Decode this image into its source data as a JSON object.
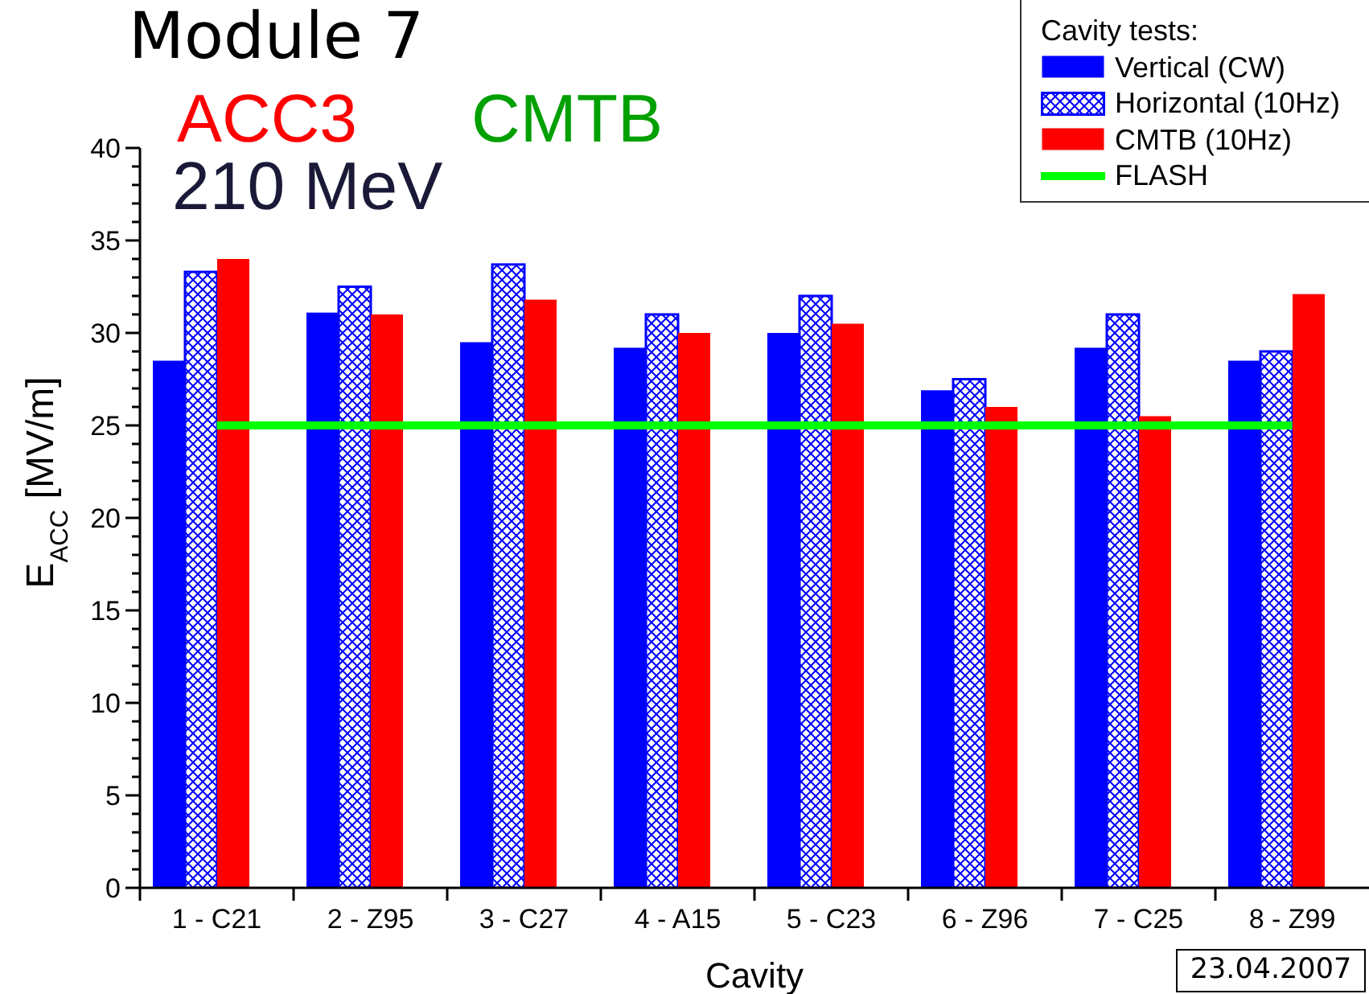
{
  "chart_data": {
    "type": "bar",
    "title": "Module 7",
    "xlabel": "Cavity",
    "ylabel": "E$_{ACC}$ [MV/m]",
    "legend_title": "Cavity tests:",
    "annotations": [
      "ACC3",
      "CMTB",
      "210 MeV",
      "23.04.2007"
    ],
    "categories": [
      "1 - C21",
      "2 - Z95",
      "3 - C27",
      "4 - A15",
      "5 - C23",
      "6 - Z96",
      "7 - C25",
      "8 - Z99"
    ],
    "series": [
      {
        "name": "Vertical (CW)",
        "color": "#0000ff",
        "values": [
          28.5,
          31.1,
          29.5,
          29.2,
          30.0,
          26.9,
          29.2,
          28.5
        ]
      },
      {
        "name": "Horizontal (10Hz)",
        "color": "#0000ff",
        "values": [
          33.3,
          32.5,
          33.7,
          31.0,
          32.0,
          27.5,
          31.0,
          29.0
        ]
      },
      {
        "name": "CMTB (10Hz)",
        "color": "#ff0000",
        "values": [
          34.0,
          31.0,
          31.8,
          30.0,
          30.5,
          26.0,
          25.5,
          32.1
        ]
      },
      {
        "name": "FLASH",
        "type": "line",
        "color": "#00ff00",
        "values": [
          25,
          25,
          25,
          25,
          25,
          25,
          25,
          25
        ]
      }
    ],
    "ylim": [
      0,
      40
    ],
    "yticks": [
      0,
      {
        "value": 1,
        "label": null
      },
      {
        "value": 2,
        "label": null
      },
      {
        "value": 3,
        "label": null
      },
      {
        "value": 4,
        "label": null
      },
      5,
      {
        "value": 6,
        "label": null
      },
      {
        "value": 7,
        "label": null
      },
      {
        "value": 8,
        "label": null
      },
      {
        "value": 9,
        "label": null
      },
      10,
      {
        "value": 11,
        "label": null
      },
      {
        "value": 12,
        "label": null
      },
      {
        "value": 13,
        "label": null
      },
      {
        "value": 14,
        "label": null
      },
      15,
      {
        "value": 16,
        "label": null
      },
      {
        "value": 17,
        "label": null
      },
      {
        "value": 18,
        "label": null
      },
      {
        "value": 19,
        "label": null
      },
      20,
      {
        "value": 21,
        "label": null
      },
      {
        "value": 22,
        "label": null
      },
      {
        "value": 23,
        "label": null
      },
      {
        "value": 24,
        "label": null
      },
      25,
      {
        "value": 26,
        "label": null
      },
      {
        "value": 27,
        "label": null
      },
      {
        "value": 28,
        "label": null
      },
      {
        "value": 29,
        "label": null
      },
      30,
      {
        "value": 31,
        "label": null
      },
      {
        "value": 32,
        "label": null
      },
      {
        "value": 33,
        "label": null
      },
      {
        "value": 34,
        "label": null
      },
      35,
      {
        "value": 36,
        "label": null
      },
      {
        "value": 37,
        "label": null
      },
      {
        "value": 38,
        "label": null
      },
      {
        "value": 39,
        "label": null
      },
      40
    ],
    "grid": false,
    "legend": "top right"
  }
}
